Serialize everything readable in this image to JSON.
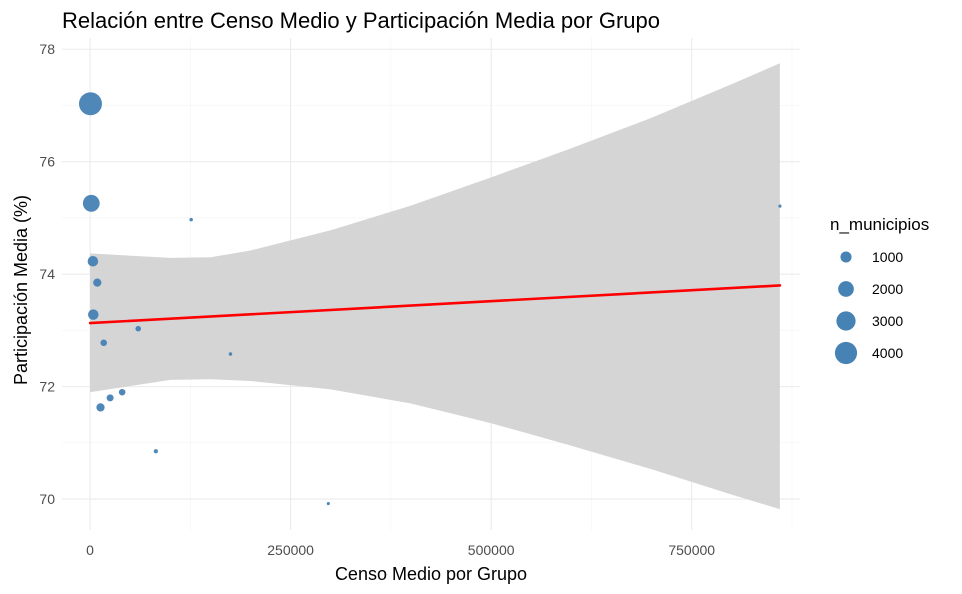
{
  "chart_data": {
    "type": "scatter",
    "title": "Relación entre Censo Medio y Participación Media por Grupo",
    "xlabel": "Censo Medio por Grupo",
    "ylabel": "Participación Media (%)",
    "xlim": [
      -35000,
      885000
    ],
    "ylim": [
      69.45,
      78.2
    ],
    "xticks": [
      0,
      250000,
      500000,
      750000
    ],
    "xtick_labels": [
      "0",
      "250000",
      "500000",
      "750000"
    ],
    "yticks": [
      70,
      72,
      74,
      76,
      78
    ],
    "ytick_labels": [
      "70",
      "72",
      "74",
      "76",
      "78"
    ],
    "grid": true,
    "point_color": "#4682B4",
    "fit_line_color": "#FF0000",
    "ribbon_color": "#D3D3D3",
    "points": [
      {
        "x": 500,
        "y": 77.03,
        "n_municipios": 4300
      },
      {
        "x": 1500,
        "y": 75.26,
        "n_municipios": 2300
      },
      {
        "x": 3500,
        "y": 74.23,
        "n_municipios": 900
      },
      {
        "x": 9000,
        "y": 73.85,
        "n_municipios": 550
      },
      {
        "x": 4000,
        "y": 73.28,
        "n_municipios": 900
      },
      {
        "x": 17000,
        "y": 72.78,
        "n_municipios": 350
      },
      {
        "x": 60000,
        "y": 73.03,
        "n_municipios": 250
      },
      {
        "x": 13000,
        "y": 71.63,
        "n_municipios": 550
      },
      {
        "x": 25000,
        "y": 71.8,
        "n_municipios": 400
      },
      {
        "x": 40000,
        "y": 71.9,
        "n_municipios": 350
      },
      {
        "x": 82000,
        "y": 70.85,
        "n_municipios": 150
      },
      {
        "x": 126000,
        "y": 74.97,
        "n_municipios": 100
      },
      {
        "x": 175000,
        "y": 72.58,
        "n_municipios": 100
      },
      {
        "x": 297000,
        "y": 69.92,
        "n_municipios": 80
      },
      {
        "x": 860000,
        "y": 75.21,
        "n_municipios": 80
      }
    ],
    "fit": {
      "x": [
        0,
        860000
      ],
      "y": [
        73.13,
        73.8
      ]
    },
    "ribbon": {
      "x": [
        0,
        100000,
        150000,
        200000,
        300000,
        400000,
        500000,
        600000,
        700000,
        800000,
        860000
      ],
      "lower": [
        71.9,
        72.12,
        72.13,
        72.1,
        71.95,
        71.7,
        71.35,
        70.95,
        70.53,
        70.08,
        69.82
      ],
      "upper": [
        74.37,
        74.29,
        74.3,
        74.42,
        74.78,
        75.22,
        75.72,
        76.24,
        76.78,
        77.38,
        77.75
      ]
    },
    "legend": {
      "title": "n_municipios",
      "position": "right",
      "entries": [
        {
          "label": "1000",
          "value": 1000
        },
        {
          "label": "2000",
          "value": 2000
        },
        {
          "label": "3000",
          "value": 3000
        },
        {
          "label": "4000",
          "value": 4000
        }
      ]
    }
  }
}
